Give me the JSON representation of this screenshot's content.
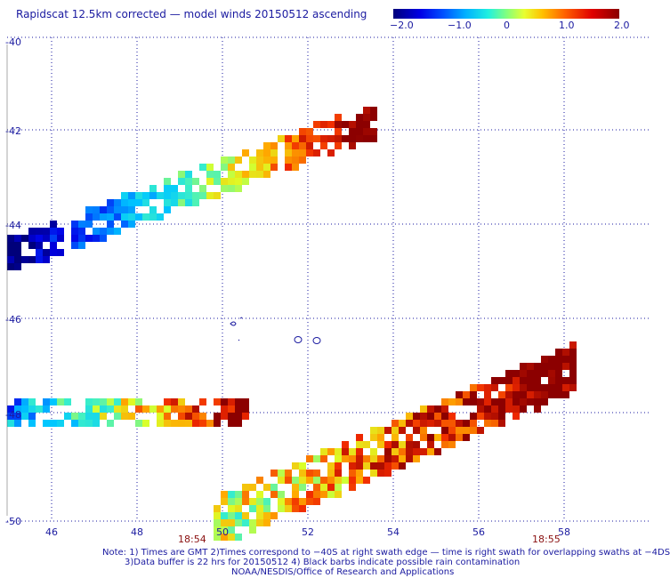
{
  "title": "Rapidscat 12.5km corrected — model winds 20150512 ascending",
  "colorbar": {
    "ticks": [
      "−2.0",
      "−1.0",
      "0",
      "1.0",
      "2.0"
    ],
    "range": [
      -2.0,
      2.0
    ]
  },
  "map": {
    "lat_labels": [
      "-40",
      "-42",
      "-44",
      "-46",
      "-48",
      "-50"
    ],
    "lon_labels": [
      "46",
      "48",
      "50",
      "52",
      "54",
      "56",
      "58"
    ],
    "lat_range": [
      -50,
      -40
    ],
    "lon_range": [
      45,
      59.5
    ],
    "grid": "dotted",
    "time_labels": [
      "18:54",
      "18:55"
    ]
  },
  "notes": {
    "line1": "Note: 1) Times are GMT 2)Times correspond to −40S at right swath edge — time is right swath for overlapping swaths at −4DS",
    "line2": "3)Data buffer is 22 hrs for 20150512 4) Black barbs indicate possible rain contamination",
    "line3": "NOAA/NESDIS/Office of Research and Applications"
  },
  "colors": {
    "text": "#1a1aa0",
    "time_text": "#8a1010"
  }
}
